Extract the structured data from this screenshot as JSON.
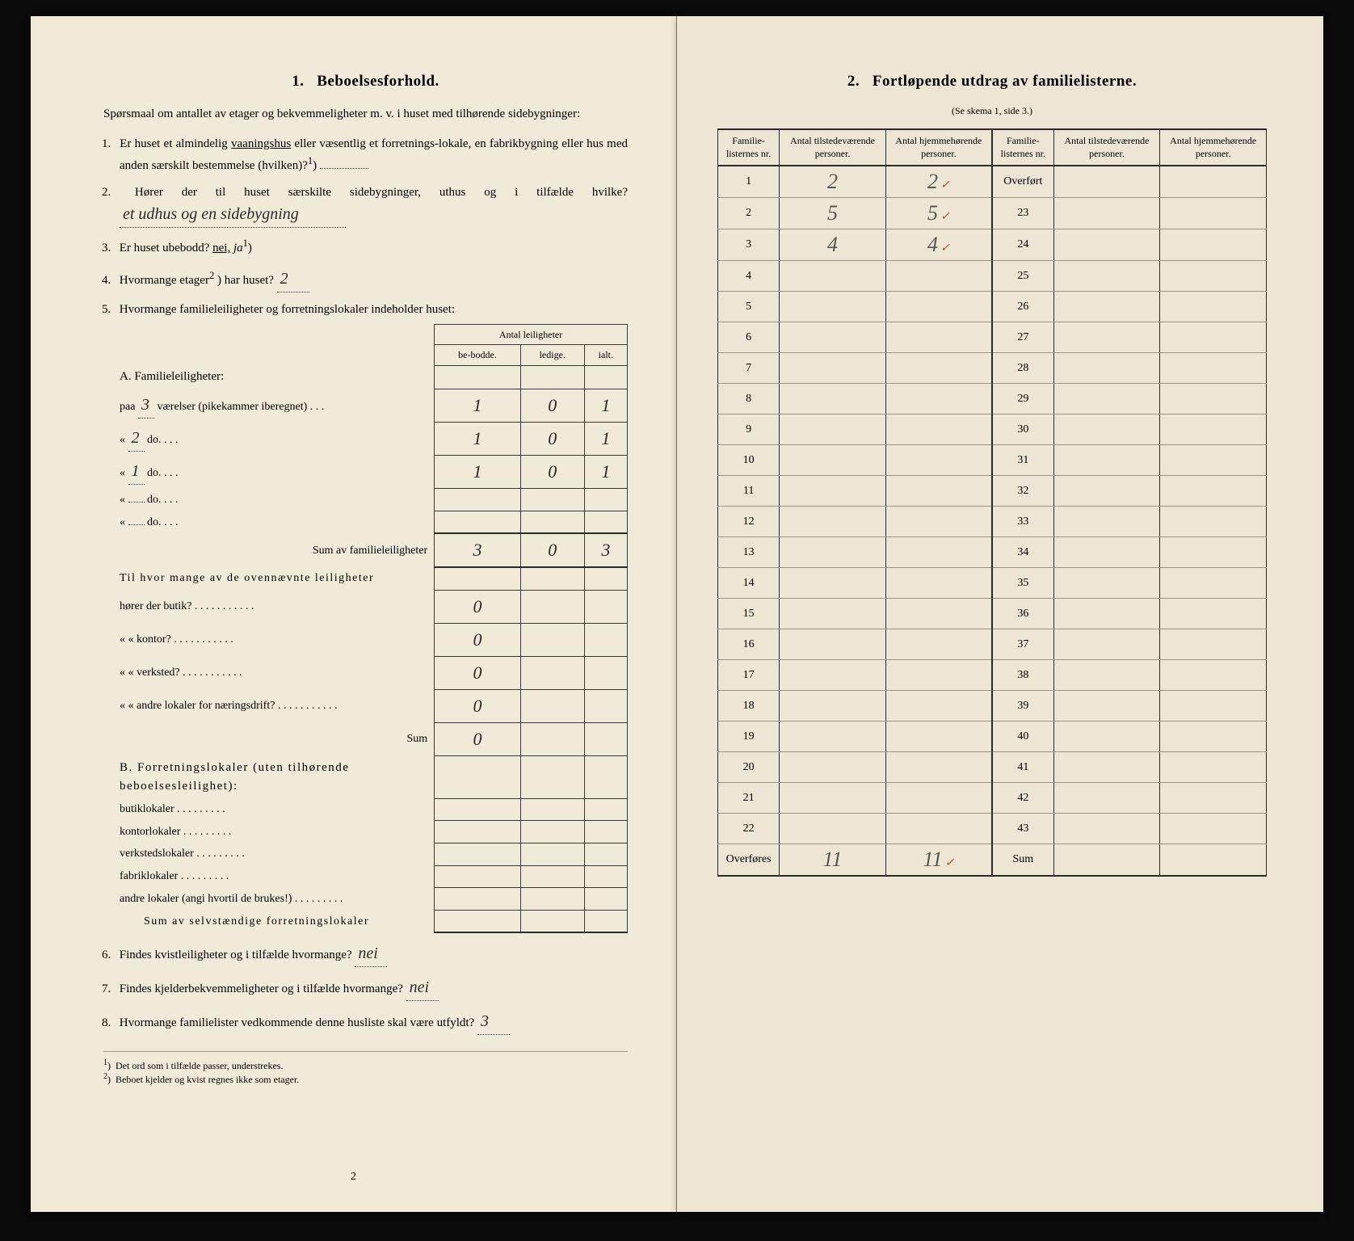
{
  "left": {
    "section_num": "1.",
    "section_title": "Beboelsesforhold.",
    "intro": "Spørsmaal om antallet av etager og bekvemmeligheter m. v. i huset med tilhørende sidebygninger:",
    "q1": "Er huset et almindelig vaaningshus eller væsentlig et forretnings-lokale, en fabrikbygning eller hus med anden særskilt bestemmelse (hvilken)?",
    "q2_pre": "Hører der til huset særskilte sidebygninger, uthus og i tilfælde hvilke?",
    "q2_hand": "et udhus og en sidebygning",
    "q3": "Er huset ubebodd?",
    "q3_nei": "nei,",
    "q3_ja": "ja",
    "q4_pre": "Hvormange etager",
    "q4_post": ") har huset?",
    "q4_hand": "2",
    "q5": "Hvormange familieleiligheter og forretningslokaler indeholder huset:",
    "table5": {
      "header": "Antal leiligheter",
      "cols": [
        "be-bodde.",
        "ledige.",
        "ialt."
      ],
      "A_title": "A. Familieleiligheter:",
      "A_rows": [
        {
          "label": "paa",
          "hand": "3",
          "tail": "værelser (pikekammer iberegnet)",
          "c": [
            "1",
            "0",
            "1"
          ]
        },
        {
          "label": "«",
          "hand": "2",
          "tail": "do.",
          "c": [
            "1",
            "0",
            "1"
          ]
        },
        {
          "label": "«",
          "hand": "1",
          "tail": "do.",
          "c": [
            "1",
            "0",
            "1"
          ]
        },
        {
          "label": "«",
          "hand": "",
          "tail": "do.",
          "c": [
            "",
            "",
            ""
          ]
        },
        {
          "label": "«",
          "hand": "",
          "tail": "do.",
          "c": [
            "",
            "",
            ""
          ]
        }
      ],
      "A_sum_label": "Sum av familieleiligheter",
      "A_sum": [
        "3",
        "0",
        "3"
      ],
      "mid_intro": "Til hvor mange av de ovennævnte leiligheter",
      "mid_rows": [
        {
          "label": "hører der butik?",
          "c": [
            "0",
            "",
            ""
          ]
        },
        {
          "label": "«    «   kontor?",
          "c": [
            "0",
            "",
            ""
          ]
        },
        {
          "label": "«    «   verksted?",
          "c": [
            "0",
            "",
            ""
          ]
        },
        {
          "label": "«    «   andre lokaler for næringsdrift?",
          "c": [
            "0",
            "",
            ""
          ]
        }
      ],
      "mid_sum_label": "Sum",
      "mid_sum": [
        "0",
        "",
        ""
      ],
      "B_title": "B. Forretningslokaler (uten tilhørende beboelsesleilighet):",
      "B_rows": [
        {
          "label": "butiklokaler",
          "c": [
            "",
            "",
            ""
          ]
        },
        {
          "label": "kontorlokaler",
          "c": [
            "",
            "",
            ""
          ]
        },
        {
          "label": "verkstedslokaler",
          "c": [
            "",
            "",
            ""
          ]
        },
        {
          "label": "fabriklokaler",
          "c": [
            "",
            "",
            ""
          ]
        },
        {
          "label": "andre lokaler (angi hvortil de brukes!)",
          "c": [
            "",
            "",
            ""
          ]
        }
      ],
      "B_sum_label": "Sum av selvstændige forretningslokaler",
      "B_sum": [
        "",
        "",
        ""
      ]
    },
    "q6": "Findes kvistleiligheter og i tilfælde hvormange?",
    "q6_hand": "nei",
    "q7": "Findes kjelderbekvemmeligheter og i tilfælde hvormange?",
    "q7_hand": "nei",
    "q8_pre": "Hvormange familielister vedkommende denne husliste skal være utfyldt?",
    "q8_hand": "3",
    "footnote1": "Det ord som i tilfælde passer, understrekes.",
    "footnote2": "Beboet kjelder og kvist regnes ikke som etager.",
    "page_num": "2"
  },
  "right": {
    "section_num": "2.",
    "section_title": "Fortløpende utdrag av familielisterne.",
    "subtitle": "(Se skema 1, side 3.)",
    "headers": [
      "Familie-listernes nr.",
      "Antal tilstedeværende personer.",
      "Antal hjemmehørende personer.",
      "Familie-listernes nr.",
      "Antal tilstedeværende personer.",
      "Antal hjemmehørende personer."
    ],
    "rows": [
      {
        "l": "1",
        "a": "2",
        "b": "2",
        "tick": true,
        "r": "Overført"
      },
      {
        "l": "2",
        "a": "5",
        "b": "5",
        "tick": true,
        "r": "23"
      },
      {
        "l": "3",
        "a": "4",
        "b": "4",
        "tick": true,
        "r": "24"
      },
      {
        "l": "4",
        "a": "",
        "b": "",
        "r": "25"
      },
      {
        "l": "5",
        "a": "",
        "b": "",
        "r": "26"
      },
      {
        "l": "6",
        "a": "",
        "b": "",
        "r": "27"
      },
      {
        "l": "7",
        "a": "",
        "b": "",
        "r": "28"
      },
      {
        "l": "8",
        "a": "",
        "b": "",
        "r": "29"
      },
      {
        "l": "9",
        "a": "",
        "b": "",
        "r": "30"
      },
      {
        "l": "10",
        "a": "",
        "b": "",
        "r": "31"
      },
      {
        "l": "11",
        "a": "",
        "b": "",
        "r": "32"
      },
      {
        "l": "12",
        "a": "",
        "b": "",
        "r": "33"
      },
      {
        "l": "13",
        "a": "",
        "b": "",
        "r": "34"
      },
      {
        "l": "14",
        "a": "",
        "b": "",
        "r": "35"
      },
      {
        "l": "15",
        "a": "",
        "b": "",
        "r": "36"
      },
      {
        "l": "16",
        "a": "",
        "b": "",
        "r": "37"
      },
      {
        "l": "17",
        "a": "",
        "b": "",
        "r": "38"
      },
      {
        "l": "18",
        "a": "",
        "b": "",
        "r": "39"
      },
      {
        "l": "19",
        "a": "",
        "b": "",
        "r": "40"
      },
      {
        "l": "20",
        "a": "",
        "b": "",
        "r": "41"
      },
      {
        "l": "21",
        "a": "",
        "b": "",
        "r": "42"
      },
      {
        "l": "22",
        "a": "",
        "b": "",
        "r": "43"
      }
    ],
    "overfores": "Overføres",
    "overfores_a": "11",
    "overfores_b": "11",
    "overfores_tick": true,
    "sum_label": "Sum"
  }
}
